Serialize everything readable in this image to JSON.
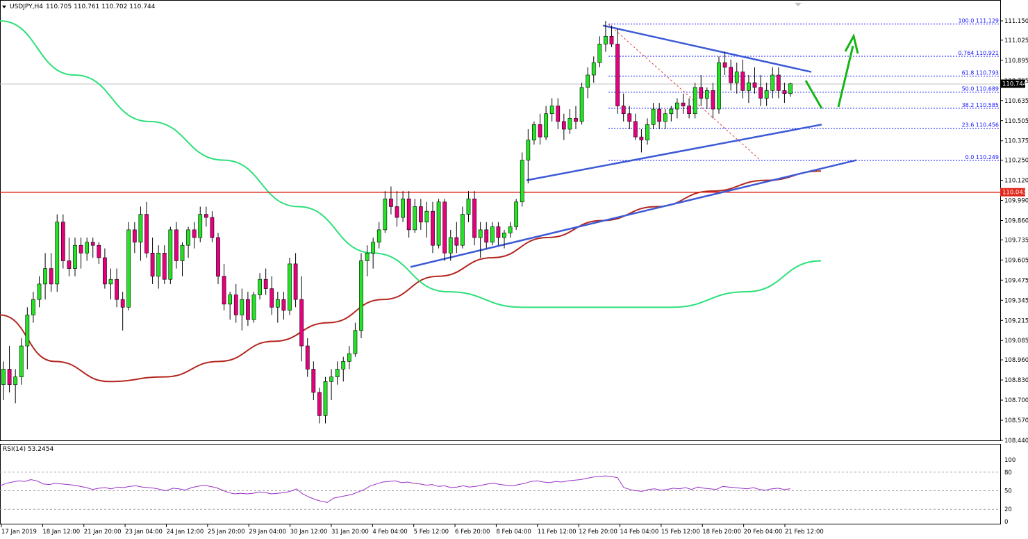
{
  "header": {
    "symbol": "USDJPY,H4",
    "ohlc": "110.705 110.761 110.702 110.744"
  },
  "rsi_header": "RSI(14) 53.2454",
  "colors": {
    "bull": "#24e324",
    "bear": "#e6007e",
    "wick": "#000000",
    "ma_fast": "#2de07a",
    "ma_slow": "#b3261e",
    "support": "#e0281c",
    "trend": "#3c5ad6",
    "fib": "#1414ff",
    "arrow": "#14b414",
    "rsi": "#9b30c6"
  },
  "chart_data": {
    "type": "candlestick",
    "y_ticks": [
      "111.150",
      "111.025",
      "110.895",
      "110.765",
      "110.635",
      "110.505",
      "110.375",
      "110.250",
      "110.120",
      "109.990",
      "109.860",
      "109.735",
      "109.605",
      "109.475",
      "109.345",
      "109.215",
      "109.085",
      "108.960",
      "108.830",
      "108.700",
      "108.570",
      "108.440"
    ],
    "ylim": [
      108.44,
      111.15
    ],
    "x_labels": [
      "17 Jan 2019",
      "18 Jan 12:00",
      "21 Jan 20:00",
      "23 Jan 04:00",
      "24 Jan 12:00",
      "25 Jan 20:00",
      "29 Jan 04:00",
      "30 Jan 12:00",
      "31 Jan 20:00",
      "4 Feb 04:00",
      "5 Feb 12:00",
      "6 Feb 20:00",
      "8 Feb 04:00",
      "11 Feb 12:00",
      "12 Feb 20:00",
      "14 Feb 04:00",
      "15 Feb 12:00",
      "18 Feb 20:00",
      "20 Feb 04:00",
      "21 Feb 12:00"
    ],
    "current_price": "110.744",
    "support_level": "110.043",
    "fib_levels": [
      {
        "label": "100.0",
        "value": "111.129"
      },
      {
        "label": "0.764",
        "value": "110.921"
      },
      {
        "label": "61.8",
        "value": "110.793"
      },
      {
        "label": "50.0",
        "value": "110.689"
      },
      {
        "label": "38.2",
        "value": "110.585"
      },
      {
        "label": "23.6",
        "value": "110.456"
      },
      {
        "label": "0.0",
        "value": "110.249"
      }
    ],
    "candles": [
      [
        108.8,
        108.95,
        108.7,
        108.9
      ],
      [
        108.9,
        109.05,
        108.75,
        108.8
      ],
      [
        108.8,
        108.9,
        108.68,
        108.85
      ],
      [
        108.85,
        109.1,
        108.8,
        109.05
      ],
      [
        109.05,
        109.3,
        108.9,
        109.25
      ],
      [
        109.25,
        109.4,
        109.2,
        109.35
      ],
      [
        109.35,
        109.5,
        109.3,
        109.45
      ],
      [
        109.45,
        109.65,
        109.35,
        109.55
      ],
      [
        109.55,
        109.65,
        109.4,
        109.45
      ],
      [
        109.45,
        109.9,
        109.4,
        109.85
      ],
      [
        109.85,
        109.9,
        109.55,
        109.6
      ],
      [
        109.6,
        109.75,
        109.5,
        109.55
      ],
      [
        109.55,
        109.75,
        109.5,
        109.7
      ],
      [
        109.7,
        109.75,
        109.55,
        109.65
      ],
      [
        109.65,
        109.75,
        109.6,
        109.72
      ],
      [
        109.72,
        109.75,
        109.62,
        109.7
      ],
      [
        109.7,
        109.72,
        109.58,
        109.62
      ],
      [
        109.62,
        109.68,
        109.42,
        109.45
      ],
      [
        109.45,
        109.55,
        109.35,
        109.48
      ],
      [
        109.48,
        109.55,
        109.3,
        109.35
      ],
      [
        109.35,
        109.4,
        109.15,
        109.3
      ],
      [
        109.3,
        109.85,
        109.28,
        109.8
      ],
      [
        109.8,
        109.85,
        109.65,
        109.72
      ],
      [
        109.72,
        109.95,
        109.6,
        109.9
      ],
      [
        109.9,
        109.98,
        109.62,
        109.65
      ],
      [
        109.65,
        109.75,
        109.45,
        109.5
      ],
      [
        109.5,
        109.7,
        109.42,
        109.65
      ],
      [
        109.65,
        109.7,
        109.45,
        109.48
      ],
      [
        109.48,
        109.82,
        109.45,
        109.8
      ],
      [
        109.8,
        109.85,
        109.55,
        109.6
      ],
      [
        109.6,
        109.72,
        109.5,
        109.7
      ],
      [
        109.7,
        109.82,
        109.62,
        109.8
      ],
      [
        109.8,
        109.85,
        109.68,
        109.75
      ],
      [
        109.75,
        109.95,
        109.72,
        109.9
      ],
      [
        109.9,
        109.95,
        109.82,
        109.88
      ],
      [
        109.88,
        109.92,
        109.72,
        109.75
      ],
      [
        109.75,
        109.78,
        109.45,
        109.5
      ],
      [
        109.5,
        109.58,
        109.28,
        109.32
      ],
      [
        109.32,
        109.4,
        109.22,
        109.38
      ],
      [
        109.38,
        109.45,
        109.2,
        109.25
      ],
      [
        109.25,
        109.42,
        109.15,
        109.35
      ],
      [
        109.35,
        109.4,
        109.18,
        109.22
      ],
      [
        109.22,
        109.4,
        109.2,
        109.38
      ],
      [
        109.38,
        109.52,
        109.35,
        109.48
      ],
      [
        109.48,
        109.55,
        109.38,
        109.42
      ],
      [
        109.42,
        109.5,
        109.25,
        109.3
      ],
      [
        109.3,
        109.4,
        109.2,
        109.35
      ],
      [
        109.35,
        109.4,
        109.22,
        109.28
      ],
      [
        109.28,
        109.62,
        109.25,
        109.58
      ],
      [
        109.58,
        109.65,
        109.3,
        109.35
      ],
      [
        109.35,
        109.5,
        108.95,
        109.05
      ],
      [
        109.05,
        109.1,
        108.85,
        108.9
      ],
      [
        108.9,
        108.95,
        108.7,
        108.75
      ],
      [
        108.75,
        108.78,
        108.55,
        108.6
      ],
      [
        108.6,
        108.85,
        108.55,
        108.82
      ],
      [
        108.82,
        108.9,
        108.7,
        108.85
      ],
      [
        108.85,
        108.95,
        108.8,
        108.9
      ],
      [
        108.9,
        108.98,
        108.82,
        108.95
      ],
      [
        108.95,
        109.05,
        108.9,
        109.0
      ],
      [
        109.0,
        109.2,
        108.98,
        109.15
      ],
      [
        109.15,
        109.65,
        109.1,
        109.6
      ],
      [
        109.6,
        109.7,
        109.5,
        109.65
      ],
      [
        109.65,
        109.75,
        109.55,
        109.72
      ],
      [
        109.72,
        109.85,
        109.68,
        109.8
      ],
      [
        109.8,
        110.05,
        109.78,
        110.0
      ],
      [
        110.0,
        110.08,
        109.9,
        109.95
      ],
      [
        109.95,
        110.05,
        109.82,
        109.88
      ],
      [
        109.88,
        110.05,
        109.85,
        110.0
      ],
      [
        110.0,
        110.05,
        109.75,
        109.8
      ],
      [
        109.8,
        110.0,
        109.78,
        109.95
      ],
      [
        109.95,
        110.0,
        109.8,
        109.85
      ],
      [
        109.85,
        109.98,
        109.75,
        109.92
      ],
      [
        109.92,
        109.98,
        109.65,
        109.7
      ],
      [
        109.7,
        110.0,
        109.68,
        109.98
      ],
      [
        109.98,
        110.0,
        109.6,
        109.65
      ],
      [
        109.65,
        109.8,
        109.6,
        109.75
      ],
      [
        109.75,
        109.85,
        109.65,
        109.7
      ],
      [
        109.7,
        109.95,
        109.68,
        109.9
      ],
      [
        109.9,
        110.05,
        109.85,
        110.0
      ],
      [
        110.0,
        110.05,
        109.7,
        109.75
      ],
      [
        109.75,
        109.85,
        109.62,
        109.8
      ],
      [
        109.8,
        109.85,
        109.68,
        109.72
      ],
      [
        109.72,
        109.85,
        109.7,
        109.82
      ],
      [
        109.82,
        109.85,
        109.7,
        109.75
      ],
      [
        109.75,
        109.8,
        109.68,
        109.78
      ],
      [
        109.78,
        109.85,
        109.75,
        109.82
      ],
      [
        109.82,
        110.0,
        109.8,
        109.98
      ],
      [
        109.98,
        110.3,
        109.95,
        110.25
      ],
      [
        110.25,
        110.45,
        110.1,
        110.38
      ],
      [
        110.38,
        110.5,
        110.35,
        110.48
      ],
      [
        110.48,
        110.55,
        110.35,
        110.4
      ],
      [
        110.4,
        110.6,
        110.38,
        110.55
      ],
      [
        110.55,
        110.65,
        110.5,
        110.6
      ],
      [
        110.6,
        110.65,
        110.45,
        110.5
      ],
      [
        110.5,
        110.55,
        110.38,
        110.45
      ],
      [
        110.45,
        110.58,
        110.42,
        110.52
      ],
      [
        110.52,
        110.6,
        110.45,
        110.5
      ],
      [
        110.5,
        110.75,
        110.48,
        110.72
      ],
      [
        110.72,
        110.85,
        110.65,
        110.8
      ],
      [
        110.8,
        110.92,
        110.75,
        110.88
      ],
      [
        110.88,
        111.05,
        110.85,
        111.0
      ],
      [
        111.0,
        111.15,
        110.95,
        111.05
      ],
      [
        111.05,
        111.12,
        110.98,
        111.0
      ],
      [
        111.0,
        111.1,
        110.55,
        110.6
      ],
      [
        110.6,
        110.68,
        110.5,
        110.55
      ],
      [
        110.55,
        110.6,
        110.45,
        110.5
      ],
      [
        110.5,
        110.55,
        110.38,
        110.4
      ],
      [
        110.4,
        110.45,
        110.3,
        110.38
      ],
      [
        110.38,
        110.52,
        110.35,
        110.48
      ],
      [
        110.48,
        110.62,
        110.45,
        110.58
      ],
      [
        110.58,
        110.62,
        110.45,
        110.5
      ],
      [
        110.5,
        110.58,
        110.45,
        110.55
      ],
      [
        110.55,
        110.6,
        110.5,
        110.58
      ],
      [
        110.58,
        110.65,
        110.52,
        110.62
      ],
      [
        110.62,
        110.68,
        110.55,
        110.6
      ],
      [
        110.6,
        110.65,
        110.52,
        110.55
      ],
      [
        110.55,
        110.75,
        110.52,
        110.72
      ],
      [
        110.72,
        110.8,
        110.6,
        110.65
      ],
      [
        110.65,
        110.72,
        110.58,
        110.7
      ],
      [
        110.7,
        110.75,
        110.52,
        110.58
      ],
      [
        110.58,
        110.92,
        110.55,
        110.88
      ],
      [
        110.88,
        110.95,
        110.8,
        110.85
      ],
      [
        110.85,
        110.9,
        110.7,
        110.75
      ],
      [
        110.75,
        110.88,
        110.68,
        110.82
      ],
      [
        110.82,
        110.9,
        110.65,
        110.7
      ],
      [
        110.7,
        110.8,
        110.62,
        110.75
      ],
      [
        110.75,
        110.85,
        110.68,
        110.72
      ],
      [
        110.72,
        110.8,
        110.6,
        110.65
      ],
      [
        110.65,
        110.75,
        110.6,
        110.7
      ],
      [
        110.7,
        110.85,
        110.65,
        110.8
      ],
      [
        110.8,
        110.85,
        110.65,
        110.7
      ],
      [
        110.7,
        110.75,
        110.62,
        110.68
      ],
      [
        110.68,
        110.75,
        110.66,
        110.744
      ]
    ],
    "ma_slow": [
      109.25,
      108.95,
      108.82,
      108.85,
      108.95,
      109.08,
      109.2,
      109.35,
      109.5,
      109.62,
      109.75,
      109.86,
      109.95,
      110.05,
      110.12,
      110.18
    ],
    "ma_fast": [
      111.15,
      110.8,
      110.5,
      110.25,
      109.95,
      109.65,
      109.4,
      109.3,
      109.3,
      109.3,
      109.4,
      109.6
    ],
    "rsi": {
      "ylim": [
        0,
        100
      ],
      "ticks": [
        "100",
        "80",
        "50",
        "20",
        "0"
      ],
      "values": [
        58,
        62,
        64,
        66,
        65,
        68,
        66,
        61,
        60,
        62,
        61,
        60,
        59,
        57,
        55,
        52,
        54,
        55,
        53,
        56,
        55,
        57,
        58,
        56,
        55,
        54,
        52,
        50,
        54,
        53,
        51,
        55,
        57,
        59,
        57,
        55,
        51,
        47,
        45,
        46,
        45,
        46,
        48,
        47,
        45,
        46,
        47,
        49,
        53,
        45,
        40,
        36,
        33,
        31,
        38,
        40,
        42,
        44,
        48,
        52,
        58,
        61,
        64,
        65,
        66,
        63,
        64,
        62,
        61,
        59,
        60,
        57,
        58,
        55,
        56,
        58,
        56,
        57,
        59,
        61,
        62,
        60,
        59,
        58,
        60,
        62,
        65,
        66,
        64,
        63,
        65,
        64,
        66,
        67,
        68,
        70,
        72,
        73,
        74,
        73,
        71,
        55,
        52,
        50,
        49,
        52,
        53,
        51,
        52,
        54,
        53,
        55,
        52,
        56,
        54,
        53,
        52,
        57,
        56,
        55,
        54,
        53,
        55,
        52,
        51,
        53,
        54,
        52,
        53
      ]
    }
  }
}
